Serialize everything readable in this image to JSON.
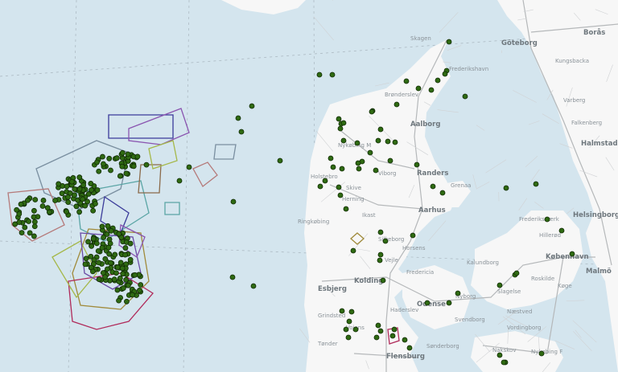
{
  "map": {
    "colors": {
      "water": "#d4e5ee",
      "land": "#f7f7f7",
      "roads": "#b5b8ba",
      "marker": "#2f6a12",
      "marker_stroke": "#102a05"
    },
    "polygon_colors": [
      "#3b3b9a",
      "#8a55b0",
      "#7a8fa0",
      "#b57a7a",
      "#5aa5a5",
      "#a08a3a",
      "#b02a5a",
      "#a5b84a",
      "#6a4aa5",
      "#8a6a4a"
    ],
    "labels": [
      {
        "text": "Skagen",
        "big": false
      },
      {
        "text": "Frederikshavn",
        "big": false
      },
      {
        "text": "Brønderslev",
        "big": false
      },
      {
        "text": "Aalborg",
        "big": true
      },
      {
        "text": "Randers",
        "big": true
      },
      {
        "text": "Aarhus",
        "big": true
      },
      {
        "text": "Viborg",
        "big": false
      },
      {
        "text": "Skive",
        "big": false
      },
      {
        "text": "Nykøbing M",
        "big": false
      },
      {
        "text": "Holstebro",
        "big": false
      },
      {
        "text": "Ringkøbing",
        "big": false
      },
      {
        "text": "Herning",
        "big": false
      },
      {
        "text": "Ikast",
        "big": false
      },
      {
        "text": "Silkeborg",
        "big": false
      },
      {
        "text": "Grenaa",
        "big": false
      },
      {
        "text": "Esbjerg",
        "big": true
      },
      {
        "text": "Kolding",
        "big": true
      },
      {
        "text": "Vejle",
        "big": false
      },
      {
        "text": "Fredericia",
        "big": false
      },
      {
        "text": "Horsens",
        "big": false
      },
      {
        "text": "Odense",
        "big": true
      },
      {
        "text": "Nyborg",
        "big": false
      },
      {
        "text": "Svendborg",
        "big": false
      },
      {
        "text": "Haderslev",
        "big": false
      },
      {
        "text": "Sønderborg",
        "big": false
      },
      {
        "text": "Flensburg",
        "big": true
      },
      {
        "text": "Næstved",
        "big": false
      },
      {
        "text": "Vordingborg",
        "big": false
      },
      {
        "text": "København",
        "big": true
      },
      {
        "text": "Malmö",
        "big": true
      },
      {
        "text": "Helsingborg",
        "big": true
      },
      {
        "text": "Halmstad",
        "big": true
      },
      {
        "text": "Göteborg",
        "big": true
      },
      {
        "text": "Borås",
        "big": true
      },
      {
        "text": "Kalundborg",
        "big": false
      },
      {
        "text": "Slagelse",
        "big": false
      },
      {
        "text": "Roskilde",
        "big": false
      },
      {
        "text": "Køge",
        "big": false
      },
      {
        "text": "Nakskov",
        "big": false
      },
      {
        "text": "Nykøbing F",
        "big": false
      },
      {
        "text": "Frederiksværk",
        "big": false
      },
      {
        "text": "Hillerød",
        "big": false
      },
      {
        "text": "Varberg",
        "big": false
      },
      {
        "text": "Falkenberg",
        "big": false
      },
      {
        "text": "Kungsbacka",
        "big": false
      },
      {
        "text": "Grindsted",
        "big": false
      },
      {
        "text": "Vojens",
        "big": false
      },
      {
        "text": "Tønder",
        "big": false
      }
    ]
  }
}
